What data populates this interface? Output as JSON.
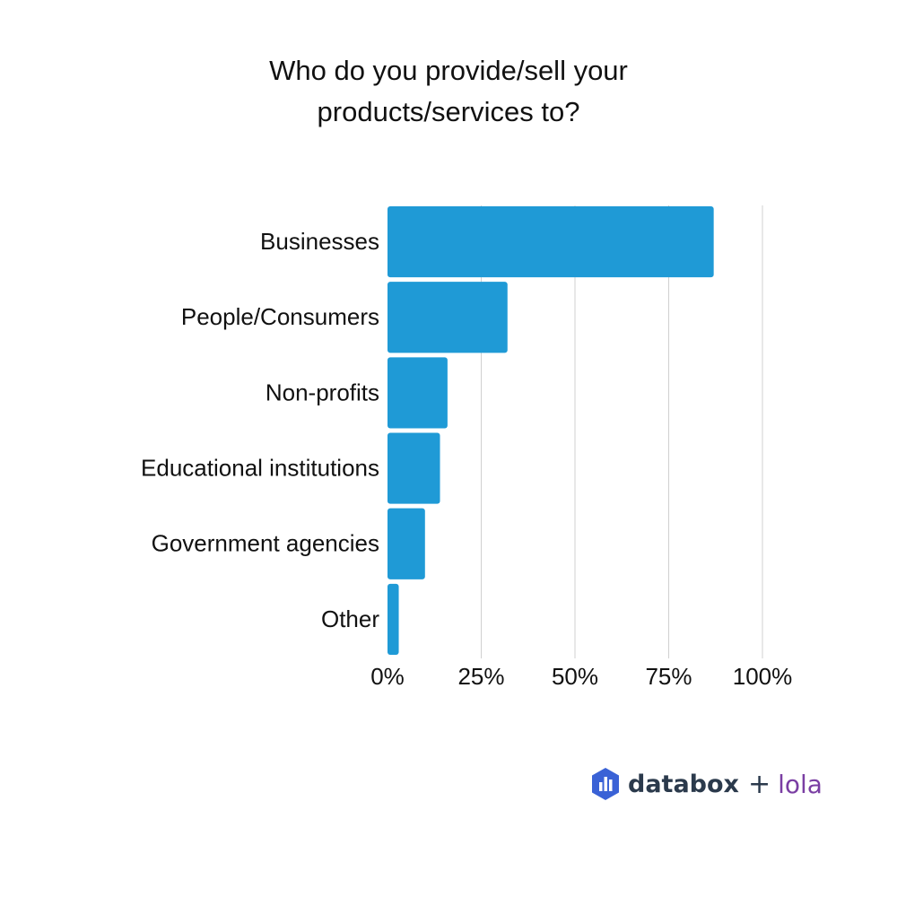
{
  "chart_data": {
    "type": "bar",
    "orientation": "horizontal",
    "title_lines": [
      "Who do you provide/sell your",
      "products/services to?"
    ],
    "categories": [
      "Businesses",
      "People/Consumers",
      "Non-profits",
      "Educational institutions",
      "Government agencies",
      "Other"
    ],
    "values": [
      87,
      32,
      16,
      14,
      10,
      3
    ],
    "xlim": [
      0,
      100
    ],
    "ticks": [
      0,
      25,
      50,
      75,
      100
    ],
    "tick_labels": [
      "0%",
      "25%",
      "50%",
      "75%",
      "100%"
    ],
    "grid": true,
    "bar_color": "#1f9ad6",
    "grid_color": "#d0d0d0"
  },
  "branding": {
    "name": "databox",
    "plus": "+",
    "partner": "lola",
    "icon": "databox-logo-icon",
    "name_color": "#2b3a4c",
    "partner_color": "#7a3ea3",
    "icon_color": "#3a62d6"
  }
}
